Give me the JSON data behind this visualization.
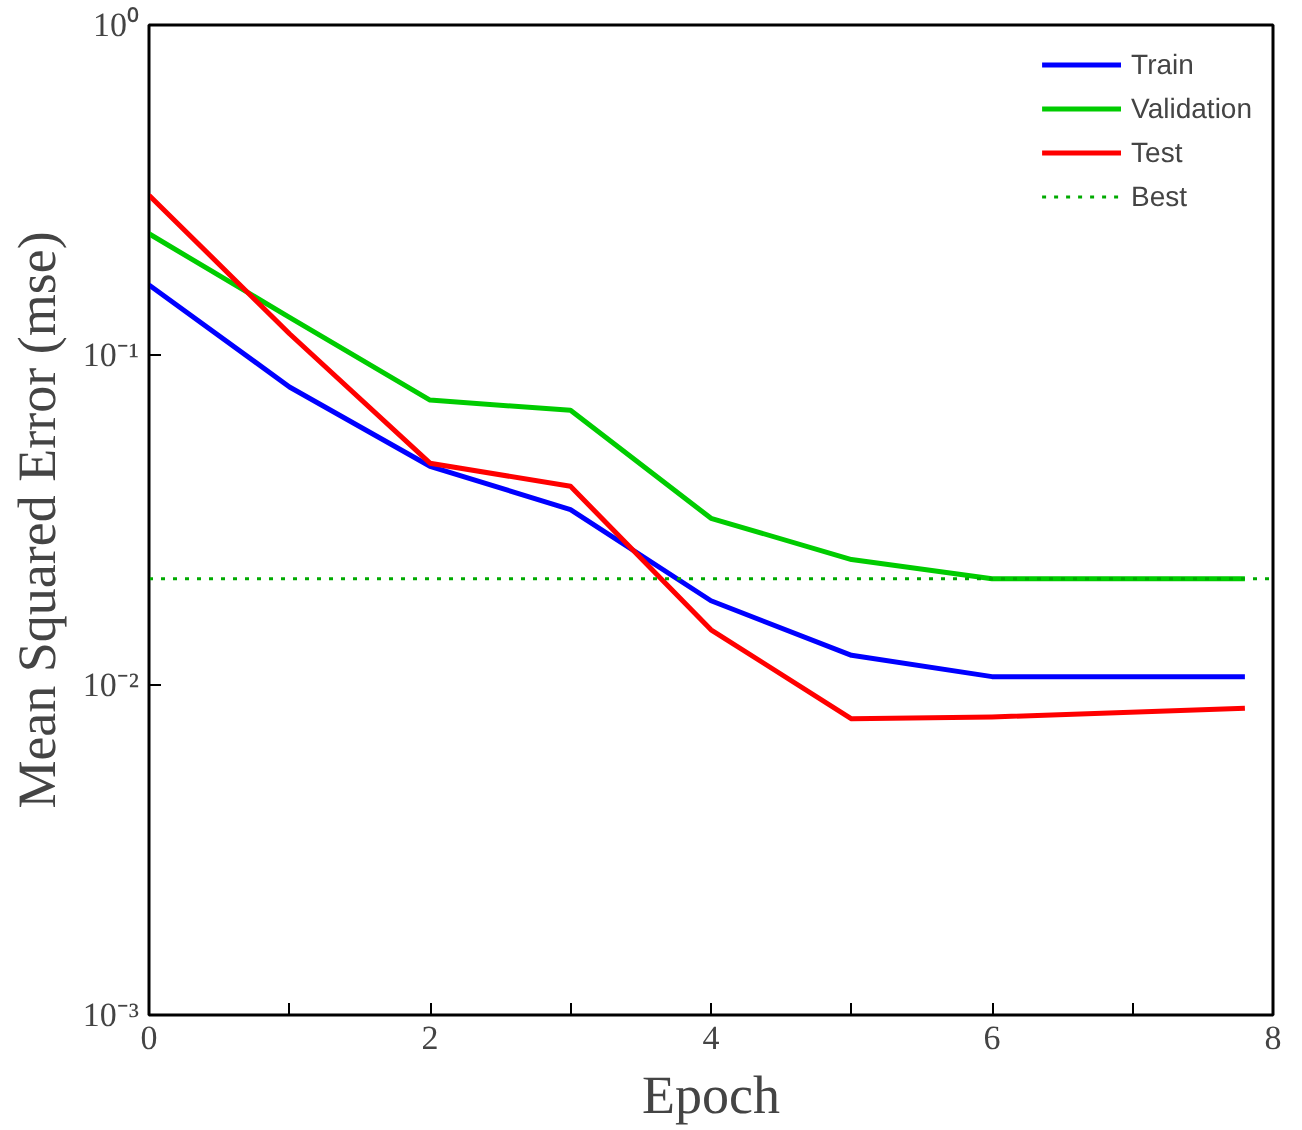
{
  "chart_data": {
    "type": "line",
    "xlabel": "Epoch",
    "ylabel": "Mean Squared Error (mse)",
    "x": [
      0,
      1,
      2,
      3,
      4,
      5,
      6,
      7.8
    ],
    "series": [
      {
        "name": "Train",
        "color": "#0000ff",
        "values": [
          0.163,
          0.08,
          0.046,
          0.034,
          0.018,
          0.0123,
          0.0106,
          0.0106
        ]
      },
      {
        "name": "Validation",
        "color": "#00cc00",
        "values": [
          0.233,
          0.13,
          0.073,
          0.068,
          0.032,
          0.024,
          0.021,
          0.021
        ]
      },
      {
        "name": "Test",
        "color": "#ff0000",
        "values": [
          0.305,
          0.116,
          0.047,
          0.04,
          0.0147,
          0.0079,
          0.008,
          0.0085
        ]
      }
    ],
    "ref_lines": [
      {
        "axis": "y",
        "value": 0.021,
        "label": "Best",
        "color": "#00aa00",
        "line_style": "dotted"
      }
    ],
    "log": "y",
    "xlim": [
      0,
      8
    ],
    "ylim": [
      0.001,
      1
    ],
    "xticks": [
      0,
      {
        "value": 1,
        "label": null
      },
      2,
      {
        "value": 3,
        "label": null
      },
      4,
      {
        "value": 5,
        "label": null
      },
      6,
      {
        "value": 7,
        "label": null
      },
      8
    ],
    "yticks": [
      {
        "value": 0.001,
        "label": "10⁻³"
      },
      {
        "value": 0.01,
        "label": "10⁻²"
      },
      {
        "value": 0.1,
        "label": "10⁻¹"
      },
      {
        "value": 1,
        "label": "10⁰"
      }
    ],
    "grid": false,
    "legend": "top right",
    "marker": "none",
    "line_style": "solid"
  }
}
